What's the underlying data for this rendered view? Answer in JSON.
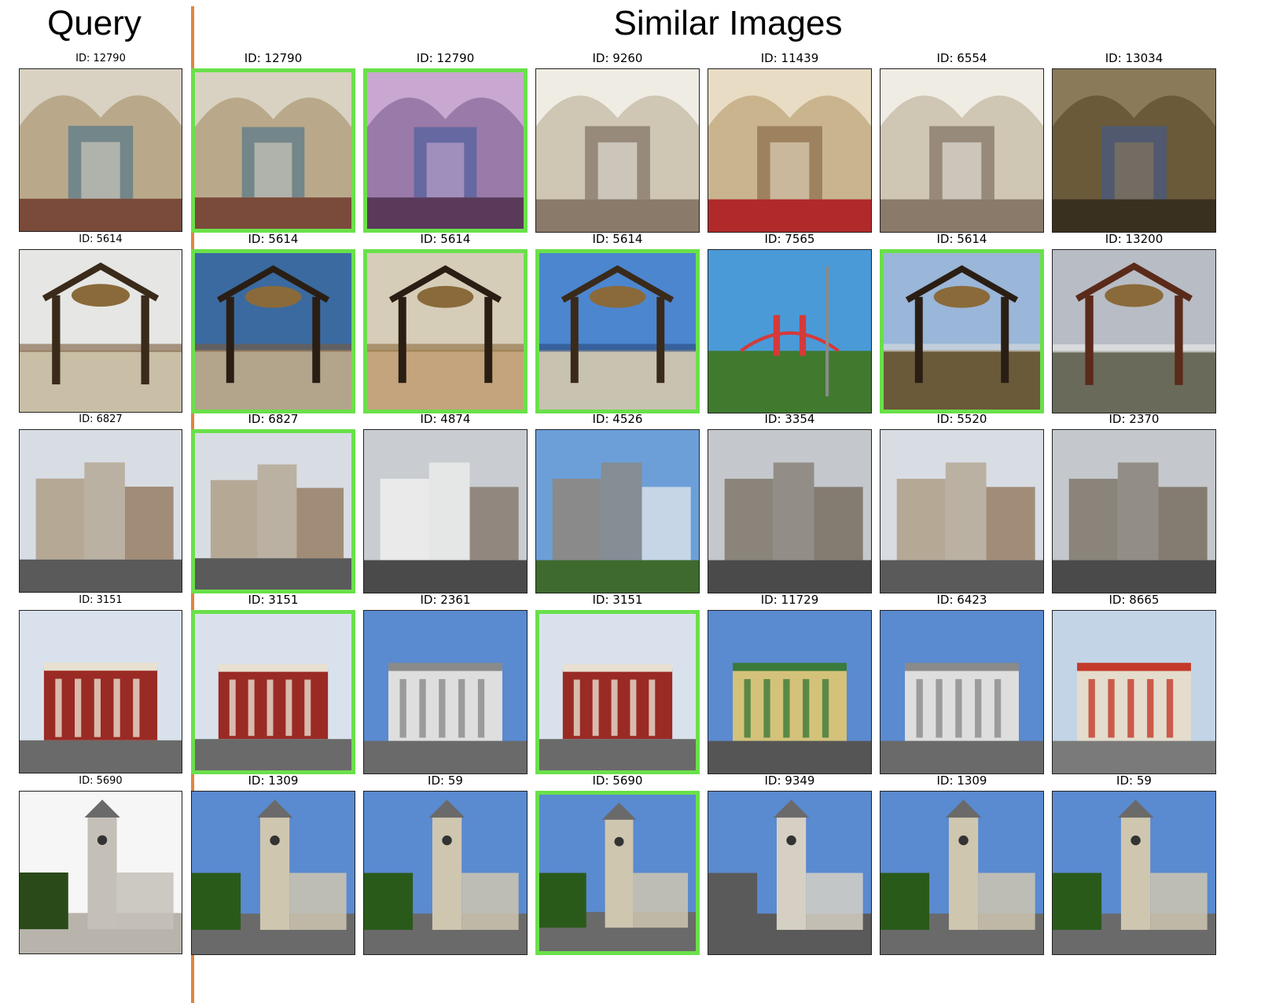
{
  "headers": {
    "query": "Query",
    "similar": "Similar Images"
  },
  "colors": {
    "divider": "#e0853f",
    "match_border": "#6ae04a"
  },
  "rows": [
    {
      "query": {
        "caption": "ID: 12790",
        "scene": "interior"
      },
      "results": [
        {
          "caption": "ID: 12790",
          "match": true,
          "scene": "interior"
        },
        {
          "caption": "ID: 12790",
          "match": true,
          "scene": "interior-purple"
        },
        {
          "caption": "ID: 9260",
          "match": false,
          "scene": "interior-light"
        },
        {
          "caption": "ID: 11439",
          "match": false,
          "scene": "interior-red"
        },
        {
          "caption": "ID: 6554",
          "match": false,
          "scene": "interior-light"
        },
        {
          "caption": "ID: 13034",
          "match": false,
          "scene": "interior-dark"
        }
      ]
    },
    {
      "query": {
        "caption": "ID: 5614",
        "scene": "gate-cloudy"
      },
      "results": [
        {
          "caption": "ID: 5614",
          "match": true,
          "scene": "gate-blue"
        },
        {
          "caption": "ID: 5614",
          "match": true,
          "scene": "gate-sepia"
        },
        {
          "caption": "ID: 5614",
          "match": true,
          "scene": "gate-small"
        },
        {
          "caption": "ID: 7565",
          "match": false,
          "scene": "bridge"
        },
        {
          "caption": "ID: 5614",
          "match": true,
          "scene": "gate-person"
        },
        {
          "caption": "ID: 13200",
          "match": false,
          "scene": "arch-cloudy"
        }
      ]
    },
    {
      "query": {
        "caption": "ID: 6827",
        "scene": "town"
      },
      "results": [
        {
          "caption": "ID: 6827",
          "match": true,
          "scene": "town"
        },
        {
          "caption": "ID: 4874",
          "match": false,
          "scene": "town-white"
        },
        {
          "caption": "ID: 4526",
          "match": false,
          "scene": "castle"
        },
        {
          "caption": "ID: 3354",
          "match": false,
          "scene": "town-grey"
        },
        {
          "caption": "ID: 5520",
          "match": false,
          "scene": "town"
        },
        {
          "caption": "ID: 2370",
          "match": false,
          "scene": "town-grey"
        }
      ]
    },
    {
      "query": {
        "caption": "ID: 3151",
        "scene": "building-red"
      },
      "results": [
        {
          "caption": "ID: 3151",
          "match": true,
          "scene": "building-red"
        },
        {
          "caption": "ID: 2361",
          "match": false,
          "scene": "building-white"
        },
        {
          "caption": "ID: 3151",
          "match": true,
          "scene": "building-red"
        },
        {
          "caption": "ID: 11729",
          "match": false,
          "scene": "building-yellow"
        },
        {
          "caption": "ID: 6423",
          "match": false,
          "scene": "building-white"
        },
        {
          "caption": "ID: 8665",
          "match": false,
          "scene": "street"
        }
      ]
    },
    {
      "query": {
        "caption": "ID: 5690",
        "scene": "tower-white"
      },
      "results": [
        {
          "caption": "ID: 1309",
          "match": false,
          "scene": "tower"
        },
        {
          "caption": "ID: 59",
          "match": false,
          "scene": "tower"
        },
        {
          "caption": "ID: 5690",
          "match": true,
          "scene": "tower"
        },
        {
          "caption": "ID: 9349",
          "match": false,
          "scene": "tower-wide"
        },
        {
          "caption": "ID: 1309",
          "match": false,
          "scene": "tower"
        },
        {
          "caption": "ID: 59",
          "match": false,
          "scene": "tower"
        }
      ]
    }
  ]
}
